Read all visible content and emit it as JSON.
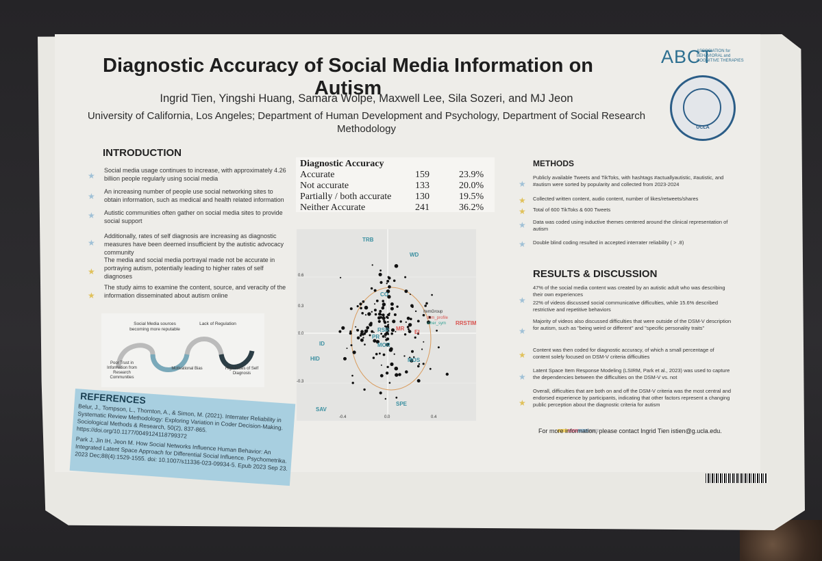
{
  "poster": {
    "title": "Diagnostic Accuracy of Social Media Information on Autism",
    "authors": "Ingrid Tien, Yingshi Huang, Samara Wolpe, Maxwell Lee, Sila Sozeri, and MJ Jeon",
    "affiliation": "University of California, Los Angeles; Department of Human Development and Psychology, Department of Social Research Methodology",
    "logo_text": "ABCT",
    "logo_sub": "ASSOCIATION for BEHAVIORAL and COGNITIVE THERAPIES",
    "seal_text": "UCLA"
  },
  "introduction": {
    "heading": "INTRODUCTION",
    "bullets": [
      "Social media usage continues to increase, with approximately 4.26 billion people regularly using social media",
      "An increasing number of people use social networking sites to obtain information, such as medical and health related information",
      "Autistic communities often gather on social media sites to provide social support",
      "Additionally, rates of self diagnosis are increasing as diagnostic measures have been deemed insufficient by the autistic advocacy community",
      "The media and social media portrayal made not be accurate in portraying autism, potentially leading to higher rates of self diagnoses",
      "The study aims to examine the content, source, and veracity of the information disseminated about autism online"
    ]
  },
  "diagram": {
    "labels": [
      "Social Media sources becoming more reputable",
      "Lack of Regulation",
      "Poor Trust in Information from Research Communities",
      "Motivational Bias",
      "High Rates of Self Diagnosis"
    ]
  },
  "references": {
    "heading": "REFERENCES",
    "text1": "Belur, J., Tompson, L., Thornton, A., & Simon, M. (2021). Interrater Reliability in Systematic Review Methodology: Exploring Variation in Coder Decision-Making. Sociological Methods & Research, 50(2), 837-865. https://doi.org/10.1177/0049124118799372",
    "text2": "Park J, Jin IH, Jeon M. How Social Networks Influence Human Behavior: An Integrated Latent Space Approach for Differential Social Influence. Psychometrika. 2023 Dec;88(4):1529-1555. doi: 10.1007/s11336-023-09934-5. Epub 2023 Sep 23."
  },
  "table": {
    "heading": "Diagnostic Accuracy",
    "rows": [
      {
        "label": "Accurate",
        "count": "159",
        "pct": "23.9%"
      },
      {
        "label": "Not accurate",
        "count": "133",
        "pct": "20.0%"
      },
      {
        "label": "Partially / both accurate",
        "count": "130",
        "pct": "19.5%"
      },
      {
        "label": "Neither Accurate",
        "count": "241",
        "pct": "36.2%"
      }
    ]
  },
  "plot": {
    "labels": [
      "TRB",
      "WD",
      "CO",
      "RRSTIM",
      "ID",
      "HID",
      "MOR",
      "MOS",
      "SAV",
      "SPE",
      "EI",
      "PR",
      "RSR",
      "MR"
    ],
    "legend_title": "ItemGroup",
    "legend_items": [
      "dsm_profile",
      "other_sym"
    ],
    "y_ticks": [
      "0.6",
      "0.3",
      "0.0",
      "-0.3"
    ],
    "x_ticks": [
      "-0.4",
      "0.0",
      "0.4"
    ]
  },
  "methods": {
    "heading": "METHODS",
    "bullets": [
      "Publicly available Tweets and TikToks, with hashtags #actuallyautistic, #autistic, and #autism were sorted by popularity and collected from 2023-2024",
      "Collected written content, audio content, number of likes/retweets/shares",
      "Total of 600 TikToks & 600 Tweets",
      "Data was coded using inductive themes centered around the clinical representation of autism",
      "Double blind coding resulted in accepted interrater reliability ( > .8)"
    ]
  },
  "results": {
    "heading": "RESULTS & DISCUSSION",
    "bullets": [
      "47% of the social media content was created by an autistic adult who was describing their own experiences",
      "22% of videos discussed social communicative difficulties, while 15.6% described restrictive and repetitive behaviors",
      "Majority of videos also discussed difficulties that were outside of the DSM-V description for autism, such as \"being weird or different\" and \"specific personality traits\"",
      "Content was then coded for diagnostic accuracy, of which a small percentage of content solely focused on DSM-V criteria difficulties",
      "Latent Space Item Response Modeling (LSIRM, Park et al., 2023) was used to capture the dependencies between the difficulties on the DSM-V vs. not",
      "Overall, difficulties that are both on and off the DSM-V criteria was the most central and endorsed experience by participants, indicating that other factors represent a changing public perception about the diagnostic criteria for autism"
    ],
    "contact": "For more information, please contact Ingrid Tien istien@g.ucla.edu."
  },
  "colors": {
    "poster_bg": "#e9e8e3",
    "accent_blue": "#2d6f90",
    "ref_box": "#a8cfe0",
    "star_blue": "#9fc0d6",
    "star_yellow": "#e0c15a",
    "plot_red": "#d9534f",
    "plot_teal": "#2a9d8f"
  }
}
